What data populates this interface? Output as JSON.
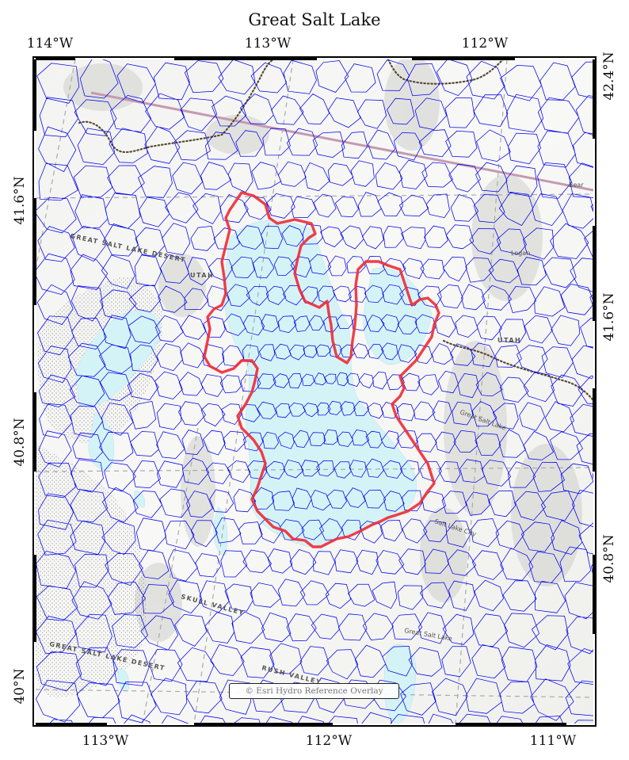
{
  "title": "Great Salt Lake",
  "axes": {
    "top_ticks": [
      "114°W",
      "113°W",
      "112°W"
    ],
    "bottom_ticks": [
      "113°W",
      "112°W",
      "111°W"
    ],
    "left_ticks": [
      "41.6°N",
      "40.8°N",
      "40°N"
    ],
    "right_ticks": [
      "42.4°N",
      "41.6°N",
      "40.8°N"
    ]
  },
  "layers": {
    "basemap": "terrain-hillshade",
    "mesh_color": "#0000ee",
    "boundary_color": "#ee2a35",
    "water_color": "#d4f3f7",
    "graticule_color": "#aaaaaa"
  },
  "place_labels": {
    "great_salt_lake_desert_north": "GREAT SALT LAKE DESERT",
    "utah_north": "UTAH",
    "utah_east": "UTAH",
    "logan": "Logan",
    "bear": "Bear",
    "great_salt_lake_city": "Great Salt Lake",
    "salt_lake_city": "Salt Lake City",
    "skull_valley": "SKULL VALLEY",
    "great_salt_lake_desert_south": "GREAT SALT LAKE DESERT",
    "rush_valley": "RUSH VALLEY",
    "great_salt_lake_south": "Great Salt Lake"
  },
  "attribution": "© Esri Hydro Reference Overlay"
}
